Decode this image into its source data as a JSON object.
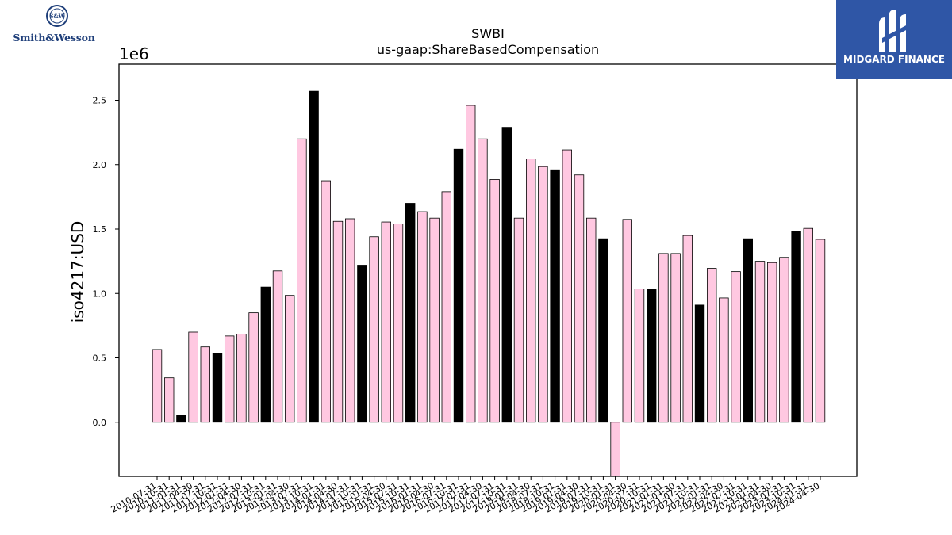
{
  "chart_data": {
    "type": "bar",
    "title": "SWBI",
    "subtitle": "us-gaap:ShareBasedCompensation",
    "xlabel": "",
    "ylabel": "iso4217:USD",
    "y_offset_label": "1e6",
    "ylim": [
      -420000,
      2780000
    ],
    "yticks": [
      0.0,
      0.5,
      1.0,
      1.5,
      2.0,
      2.5
    ],
    "ytick_labels": [
      "0.0",
      "0.5",
      "1.0",
      "1.5",
      "2.0",
      "2.5"
    ],
    "categories": [
      "2010-07-31",
      "2010-10-31",
      "2011-01-31",
      "2011-04-30",
      "2011-07-31",
      "2011-10-31",
      "2012-01-31",
      "2012-04-30",
      "2012-07-31",
      "2012-10-31",
      "2013-01-31",
      "2013-04-30",
      "2013-07-31",
      "2013-10-31",
      "2014-01-31",
      "2014-04-30",
      "2014-07-31",
      "2014-10-31",
      "2015-01-31",
      "2015-04-30",
      "2015-07-31",
      "2015-10-31",
      "2016-01-31",
      "2016-04-30",
      "2016-07-31",
      "2016-10-31",
      "2017-01-31",
      "2017-04-30",
      "2017-07-31",
      "2017-10-31",
      "2018-01-31",
      "2018-04-30",
      "2018-07-31",
      "2018-10-31",
      "2019-01-31",
      "2019-04-30",
      "2019-07-31",
      "2019-10-31",
      "2020-01-31",
      "2020-04-30",
      "2020-07-31",
      "2020-10-31",
      "2021-01-31",
      "2021-04-30",
      "2021-07-31",
      "2021-10-31",
      "2022-01-31",
      "2022-04-30",
      "2022-07-31",
      "2022-10-31",
      "2023-01-31",
      "2023-04-30",
      "2023-07-31",
      "2023-10-31",
      "2024-01-31",
      "2024-04-30"
    ],
    "values": [
      565000,
      345000,
      55000,
      700000,
      585000,
      535000,
      670000,
      685000,
      850000,
      1050000,
      1175000,
      985000,
      2200000,
      2570000,
      1875000,
      1560000,
      1580000,
      1220000,
      1440000,
      1555000,
      1540000,
      1700000,
      1635000,
      1585000,
      1790000,
      2120000,
      2460000,
      2200000,
      1885000,
      2290000,
      1585000,
      2045000,
      1985000,
      1960000,
      2115000,
      1920000,
      1585000,
      1425000,
      -430000,
      1575000,
      1035000,
      1030000,
      1310000,
      1310000,
      1450000,
      910000,
      1195000,
      965000,
      1170000,
      1425000,
      1250000,
      1240000,
      1280000,
      1480000,
      1505000,
      1420000
    ],
    "highlight_black": [
      false,
      false,
      true,
      false,
      false,
      true,
      false,
      false,
      false,
      true,
      false,
      false,
      false,
      true,
      false,
      false,
      false,
      true,
      false,
      false,
      false,
      true,
      false,
      false,
      false,
      true,
      false,
      false,
      false,
      true,
      false,
      false,
      false,
      true,
      false,
      false,
      false,
      true,
      false,
      false,
      false,
      true,
      false,
      false,
      false,
      true,
      false,
      false,
      false,
      true,
      false,
      false,
      false,
      true,
      false,
      false
    ],
    "bar_color": "#ffc8e1",
    "highlight_color": "#000000",
    "edge_color": "#000000",
    "grid": false,
    "legend": "none"
  },
  "logos": {
    "left_wordmark": "Smith&Wesson",
    "left_emblem_text": "S&W",
    "right_wordmark": "MIDGARD FINANCE",
    "right_bg_color": "#2f56a6"
  }
}
